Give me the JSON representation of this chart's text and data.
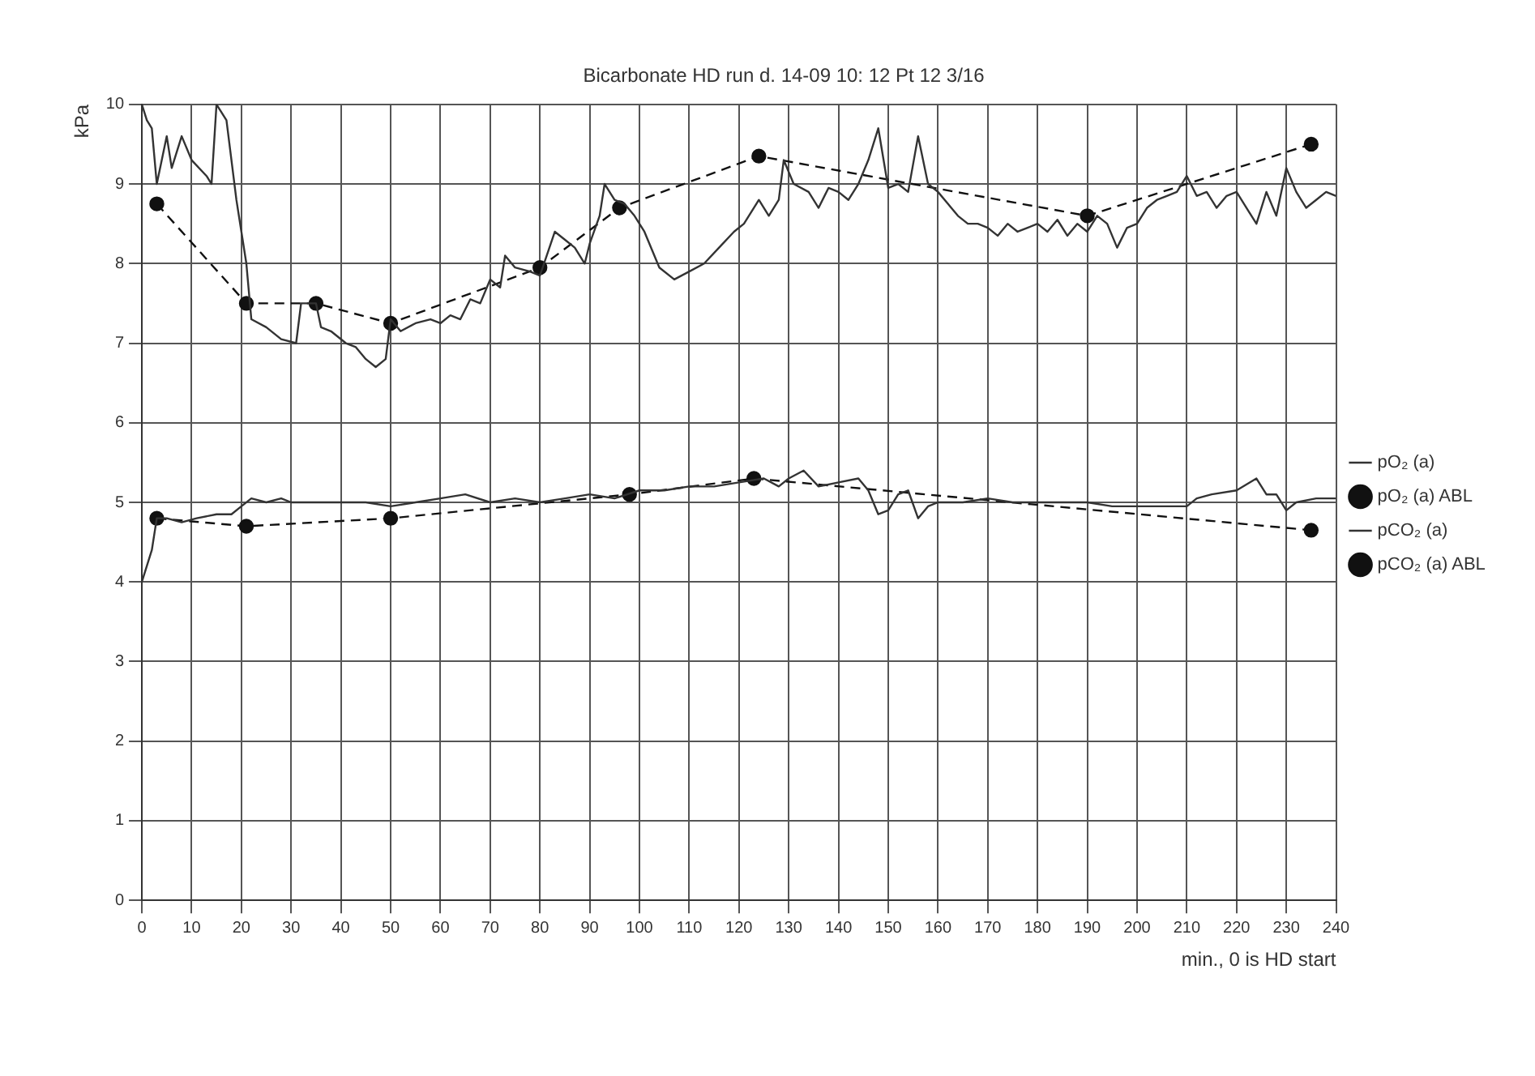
{
  "chart_data": {
    "type": "line",
    "title": "Bicarbonate HD run d. 14-09 10: 12 Pt 12 3/16",
    "xlabel": "min., 0 is HD start",
    "ylabel": "kPa",
    "xlim": [
      0,
      240
    ],
    "xticks": [
      0,
      10,
      20,
      30,
      40,
      50,
      60,
      70,
      80,
      90,
      100,
      110,
      120,
      130,
      140,
      150,
      160,
      170,
      180,
      190,
      200,
      210,
      220,
      230,
      240
    ],
    "ylim": [
      0,
      10
    ],
    "yticks": [
      0,
      1,
      2,
      3,
      4,
      5,
      6,
      7,
      8,
      9,
      10
    ],
    "grid": true,
    "legend": "right",
    "series": [
      {
        "name": "pO₂ (a)",
        "color": "#333333",
        "marker": "none",
        "line_style": "solid",
        "x": [
          0,
          1,
          2,
          3,
          5,
          6,
          8,
          10,
          13,
          14,
          15,
          17,
          19,
          21,
          22,
          25,
          28,
          31,
          32,
          35,
          36,
          38,
          41,
          43,
          45,
          47,
          49,
          50,
          52,
          55,
          58,
          60,
          62,
          64,
          66,
          68,
          70,
          72,
          73,
          75,
          78,
          80,
          83,
          85,
          87,
          89,
          90,
          92,
          93,
          95,
          97,
          99,
          101,
          104,
          107,
          110,
          113,
          116,
          119,
          121,
          124,
          126,
          128,
          129,
          131,
          134,
          136,
          138,
          140,
          142,
          144,
          146,
          148,
          150,
          152,
          154,
          156,
          158,
          160,
          162,
          164,
          166,
          168,
          170,
          172,
          174,
          176,
          178,
          180,
          182,
          184,
          186,
          188,
          190,
          192,
          194,
          196,
          198,
          200,
          202,
          204,
          206,
          208,
          210,
          212,
          214,
          216,
          218,
          220,
          222,
          224,
          226,
          228,
          230,
          232,
          234,
          236,
          238,
          240
        ],
        "values": [
          10.0,
          9.8,
          9.7,
          9.0,
          9.6,
          9.2,
          9.6,
          9.3,
          9.1,
          9.0,
          10.0,
          9.8,
          8.8,
          8.0,
          7.3,
          7.2,
          7.05,
          7.0,
          7.5,
          7.5,
          7.2,
          7.15,
          7.0,
          6.95,
          6.8,
          6.7,
          6.8,
          7.3,
          7.15,
          7.25,
          7.3,
          7.25,
          7.35,
          7.3,
          7.55,
          7.5,
          7.8,
          7.7,
          8.1,
          7.95,
          7.9,
          7.85,
          8.4,
          8.3,
          8.2,
          8.0,
          8.25,
          8.6,
          9.0,
          8.8,
          8.75,
          8.6,
          8.4,
          7.95,
          7.8,
          7.9,
          8.0,
          8.2,
          8.4,
          8.5,
          8.8,
          8.6,
          8.8,
          9.3,
          9.0,
          8.9,
          8.7,
          8.95,
          8.9,
          8.8,
          9.0,
          9.3,
          9.7,
          8.95,
          9.0,
          8.9,
          9.6,
          9.0,
          8.9,
          8.75,
          8.6,
          8.5,
          8.5,
          8.45,
          8.35,
          8.5,
          8.4,
          8.45,
          8.5,
          8.4,
          8.55,
          8.35,
          8.5,
          8.4,
          8.6,
          8.5,
          8.2,
          8.45,
          8.5,
          8.7,
          8.8,
          8.85,
          8.9,
          9.1,
          8.85,
          8.9,
          8.7,
          8.85,
          8.9,
          8.7,
          8.5,
          8.9,
          8.6,
          9.2,
          8.9,
          8.7,
          8.8,
          8.9,
          8.85
        ]
      },
      {
        "name": "pO₂ (a) ABL",
        "color": "#111111",
        "marker": "circle",
        "line_style": "dashed",
        "x": [
          3,
          21,
          35,
          50,
          80,
          96,
          124,
          190,
          235
        ],
        "values": [
          8.75,
          7.5,
          7.5,
          7.25,
          7.95,
          8.7,
          9.35,
          8.6,
          9.5
        ]
      },
      {
        "name": "pCO₂ (a)",
        "color": "#333333",
        "marker": "none",
        "line_style": "solid",
        "x": [
          0,
          2,
          3,
          5,
          8,
          11,
          15,
          18,
          20,
          22,
          25,
          28,
          30,
          35,
          40,
          45,
          50,
          55,
          60,
          65,
          70,
          75,
          80,
          85,
          90,
          95,
          100,
          105,
          110,
          115,
          120,
          125,
          128,
          130,
          133,
          136,
          140,
          144,
          146,
          148,
          150,
          152,
          154,
          156,
          158,
          160,
          165,
          170,
          175,
          180,
          185,
          190,
          195,
          200,
          205,
          210,
          212,
          215,
          220,
          224,
          226,
          228,
          230,
          232,
          236,
          240
        ],
        "values": [
          4.0,
          4.4,
          4.8,
          4.8,
          4.75,
          4.8,
          4.85,
          4.85,
          4.95,
          5.05,
          5.0,
          5.05,
          5.0,
          5.0,
          5.0,
          5.0,
          4.95,
          5.0,
          5.05,
          5.1,
          5.0,
          5.05,
          5.0,
          5.05,
          5.1,
          5.05,
          5.15,
          5.15,
          5.2,
          5.2,
          5.25,
          5.3,
          5.2,
          5.3,
          5.4,
          5.2,
          5.25,
          5.3,
          5.15,
          4.85,
          4.9,
          5.1,
          5.15,
          4.8,
          4.95,
          5.0,
          5.0,
          5.05,
          5.0,
          5.0,
          5.0,
          5.0,
          4.95,
          4.95,
          4.95,
          4.95,
          5.05,
          5.1,
          5.15,
          5.3,
          5.1,
          5.1,
          4.9,
          5.0,
          5.05,
          5.05
        ]
      },
      {
        "name": "pCO₂ (a) ABL",
        "color": "#111111",
        "marker": "circle",
        "line_style": "dashed",
        "x": [
          3,
          21,
          50,
          98,
          123,
          235
        ],
        "values": [
          4.8,
          4.7,
          4.8,
          5.1,
          5.3,
          4.65
        ]
      }
    ]
  }
}
